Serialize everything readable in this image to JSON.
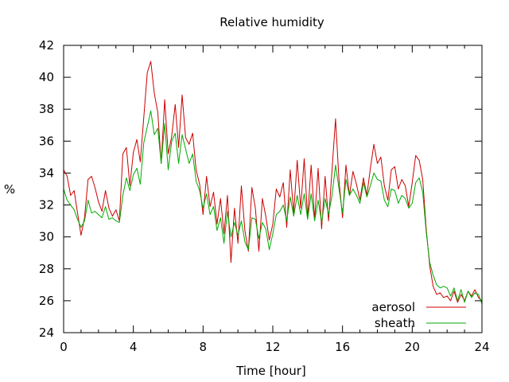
{
  "chart_data": {
    "type": "line",
    "title": "Relative humidity",
    "xlabel": "Time [hour]",
    "ylabel": "%",
    "xlim": [
      0,
      24
    ],
    "ylim": [
      24,
      42
    ],
    "xticks": [
      0,
      4,
      8,
      12,
      16,
      20,
      24
    ],
    "yticks": [
      24,
      26,
      28,
      30,
      32,
      34,
      36,
      38,
      40,
      42
    ],
    "x_minor_step": 1,
    "grid": false,
    "legend_position": "bottom-right",
    "series": [
      {
        "name": "aerosol",
        "color": "#cc0000",
        "points": [
          [
            0.0,
            34.2
          ],
          [
            0.2,
            33.8
          ],
          [
            0.4,
            32.6
          ],
          [
            0.6,
            32.9
          ],
          [
            0.8,
            31.5
          ],
          [
            1.0,
            30.1
          ],
          [
            1.2,
            31.2
          ],
          [
            1.4,
            33.6
          ],
          [
            1.6,
            33.8
          ],
          [
            1.8,
            33.1
          ],
          [
            2.0,
            32.2
          ],
          [
            2.2,
            31.6
          ],
          [
            2.4,
            32.9
          ],
          [
            2.6,
            31.8
          ],
          [
            2.8,
            31.3
          ],
          [
            3.0,
            31.7
          ],
          [
            3.2,
            31.0
          ],
          [
            3.4,
            35.2
          ],
          [
            3.6,
            35.6
          ],
          [
            3.8,
            33.2
          ],
          [
            4.0,
            35.3
          ],
          [
            4.2,
            36.1
          ],
          [
            4.4,
            34.7
          ],
          [
            4.6,
            37.5
          ],
          [
            4.8,
            40.3
          ],
          [
            5.0,
            41.0
          ],
          [
            5.2,
            39.0
          ],
          [
            5.4,
            37.8
          ],
          [
            5.6,
            34.6
          ],
          [
            5.8,
            38.6
          ],
          [
            6.0,
            35.2
          ],
          [
            6.2,
            36.3
          ],
          [
            6.4,
            38.3
          ],
          [
            6.6,
            35.6
          ],
          [
            6.8,
            38.9
          ],
          [
            7.0,
            36.2
          ],
          [
            7.2,
            35.8
          ],
          [
            7.4,
            36.5
          ],
          [
            7.6,
            34.2
          ],
          [
            7.8,
            33.3
          ],
          [
            8.0,
            31.4
          ],
          [
            8.2,
            33.8
          ],
          [
            8.4,
            31.9
          ],
          [
            8.6,
            32.8
          ],
          [
            8.8,
            30.8
          ],
          [
            9.0,
            32.4
          ],
          [
            9.2,
            30.2
          ],
          [
            9.4,
            32.6
          ],
          [
            9.6,
            28.4
          ],
          [
            9.8,
            31.8
          ],
          [
            10.0,
            29.6
          ],
          [
            10.2,
            33.2
          ],
          [
            10.4,
            30.4
          ],
          [
            10.6,
            29.1
          ],
          [
            10.8,
            33.1
          ],
          [
            11.0,
            31.8
          ],
          [
            11.2,
            29.1
          ],
          [
            11.4,
            32.4
          ],
          [
            11.6,
            31.3
          ],
          [
            11.8,
            29.8
          ],
          [
            12.0,
            30.8
          ],
          [
            12.2,
            33.0
          ],
          [
            12.4,
            32.5
          ],
          [
            12.6,
            33.4
          ],
          [
            12.8,
            30.6
          ],
          [
            13.0,
            34.2
          ],
          [
            13.2,
            31.5
          ],
          [
            13.4,
            34.8
          ],
          [
            13.6,
            31.8
          ],
          [
            13.8,
            34.9
          ],
          [
            14.0,
            31.2
          ],
          [
            14.2,
            34.5
          ],
          [
            14.4,
            31.1
          ],
          [
            14.6,
            34.3
          ],
          [
            14.8,
            30.5
          ],
          [
            15.0,
            33.8
          ],
          [
            15.2,
            31.0
          ],
          [
            15.4,
            34.2
          ],
          [
            15.6,
            37.4
          ],
          [
            15.8,
            33.5
          ],
          [
            16.0,
            31.2
          ],
          [
            16.2,
            34.5
          ],
          [
            16.4,
            32.6
          ],
          [
            16.6,
            34.1
          ],
          [
            16.8,
            33.3
          ],
          [
            17.0,
            32.3
          ],
          [
            17.2,
            33.7
          ],
          [
            17.4,
            32.6
          ],
          [
            17.6,
            34.3
          ],
          [
            17.8,
            35.8
          ],
          [
            18.0,
            34.6
          ],
          [
            18.2,
            35.0
          ],
          [
            18.4,
            33.2
          ],
          [
            18.6,
            32.3
          ],
          [
            18.8,
            34.2
          ],
          [
            19.0,
            34.4
          ],
          [
            19.2,
            33.0
          ],
          [
            19.4,
            33.6
          ],
          [
            19.6,
            33.2
          ],
          [
            19.8,
            31.9
          ],
          [
            20.0,
            33.4
          ],
          [
            20.2,
            35.1
          ],
          [
            20.4,
            34.8
          ],
          [
            20.6,
            33.6
          ],
          [
            20.8,
            30.5
          ],
          [
            21.0,
            28.2
          ],
          [
            21.2,
            26.9
          ],
          [
            21.4,
            26.4
          ],
          [
            21.6,
            26.5
          ],
          [
            21.8,
            26.2
          ],
          [
            22.0,
            26.3
          ],
          [
            22.2,
            26.0
          ],
          [
            22.4,
            26.6
          ],
          [
            22.6,
            25.9
          ],
          [
            22.8,
            26.4
          ],
          [
            23.0,
            26.0
          ],
          [
            23.2,
            26.6
          ],
          [
            23.4,
            26.3
          ],
          [
            23.6,
            26.7
          ],
          [
            23.8,
            26.2
          ],
          [
            24.0,
            26.0
          ]
        ]
      },
      {
        "name": "sheath",
        "color": "#00aa00",
        "points": [
          [
            0.0,
            33.0
          ],
          [
            0.2,
            32.3
          ],
          [
            0.4,
            32.0
          ],
          [
            0.6,
            31.7
          ],
          [
            0.8,
            31.1
          ],
          [
            1.0,
            30.6
          ],
          [
            1.2,
            31.0
          ],
          [
            1.4,
            32.3
          ],
          [
            1.6,
            31.5
          ],
          [
            1.8,
            31.6
          ],
          [
            2.0,
            31.4
          ],
          [
            2.2,
            31.2
          ],
          [
            2.4,
            31.9
          ],
          [
            2.6,
            31.1
          ],
          [
            2.8,
            31.2
          ],
          [
            3.0,
            31.0
          ],
          [
            3.2,
            30.9
          ],
          [
            3.4,
            32.6
          ],
          [
            3.6,
            33.7
          ],
          [
            3.8,
            32.9
          ],
          [
            4.0,
            33.9
          ],
          [
            4.2,
            34.3
          ],
          [
            4.4,
            33.3
          ],
          [
            4.6,
            35.9
          ],
          [
            4.8,
            36.9
          ],
          [
            5.0,
            37.9
          ],
          [
            5.2,
            36.4
          ],
          [
            5.4,
            36.8
          ],
          [
            5.6,
            34.6
          ],
          [
            5.8,
            37.1
          ],
          [
            6.0,
            34.2
          ],
          [
            6.2,
            36.0
          ],
          [
            6.4,
            36.5
          ],
          [
            6.6,
            34.6
          ],
          [
            6.8,
            36.4
          ],
          [
            7.0,
            35.5
          ],
          [
            7.2,
            34.6
          ],
          [
            7.4,
            35.2
          ],
          [
            7.6,
            33.5
          ],
          [
            7.8,
            32.9
          ],
          [
            8.0,
            31.8
          ],
          [
            8.2,
            32.7
          ],
          [
            8.4,
            31.4
          ],
          [
            8.6,
            31.9
          ],
          [
            8.8,
            30.4
          ],
          [
            9.0,
            31.2
          ],
          [
            9.2,
            29.6
          ],
          [
            9.4,
            31.6
          ],
          [
            9.6,
            30.0
          ],
          [
            9.8,
            30.9
          ],
          [
            10.0,
            30.1
          ],
          [
            10.2,
            31.0
          ],
          [
            10.4,
            29.7
          ],
          [
            10.6,
            29.2
          ],
          [
            10.8,
            31.2
          ],
          [
            11.0,
            31.1
          ],
          [
            11.2,
            29.9
          ],
          [
            11.4,
            30.9
          ],
          [
            11.6,
            30.5
          ],
          [
            11.8,
            29.2
          ],
          [
            12.0,
            30.2
          ],
          [
            12.2,
            31.4
          ],
          [
            12.4,
            31.6
          ],
          [
            12.6,
            32.0
          ],
          [
            12.8,
            31.0
          ],
          [
            13.0,
            32.5
          ],
          [
            13.2,
            31.3
          ],
          [
            13.4,
            32.6
          ],
          [
            13.6,
            31.4
          ],
          [
            13.8,
            32.7
          ],
          [
            14.0,
            31.1
          ],
          [
            14.2,
            32.7
          ],
          [
            14.4,
            31.0
          ],
          [
            14.6,
            32.3
          ],
          [
            14.8,
            30.9
          ],
          [
            15.0,
            32.4
          ],
          [
            15.2,
            31.4
          ],
          [
            15.4,
            32.6
          ],
          [
            15.6,
            34.5
          ],
          [
            15.8,
            33.0
          ],
          [
            16.0,
            31.5
          ],
          [
            16.2,
            33.6
          ],
          [
            16.4,
            32.6
          ],
          [
            16.6,
            33.0
          ],
          [
            16.8,
            32.6
          ],
          [
            17.0,
            32.1
          ],
          [
            17.2,
            33.4
          ],
          [
            17.4,
            32.5
          ],
          [
            17.6,
            33.2
          ],
          [
            17.8,
            34.0
          ],
          [
            18.0,
            33.6
          ],
          [
            18.2,
            33.5
          ],
          [
            18.4,
            32.3
          ],
          [
            18.6,
            31.9
          ],
          [
            18.8,
            33.0
          ],
          [
            19.0,
            32.9
          ],
          [
            19.2,
            32.1
          ],
          [
            19.4,
            32.6
          ],
          [
            19.6,
            32.4
          ],
          [
            19.8,
            31.8
          ],
          [
            20.0,
            32.1
          ],
          [
            20.2,
            33.4
          ],
          [
            20.4,
            33.7
          ],
          [
            20.6,
            32.8
          ],
          [
            20.8,
            30.3
          ],
          [
            21.0,
            28.4
          ],
          [
            21.2,
            27.6
          ],
          [
            21.4,
            27.0
          ],
          [
            21.6,
            26.8
          ],
          [
            21.8,
            26.9
          ],
          [
            22.0,
            26.8
          ],
          [
            22.2,
            26.3
          ],
          [
            22.4,
            26.8
          ],
          [
            22.6,
            26.0
          ],
          [
            22.8,
            26.7
          ],
          [
            23.0,
            25.9
          ],
          [
            23.2,
            26.6
          ],
          [
            23.4,
            26.2
          ],
          [
            23.6,
            26.5
          ],
          [
            23.8,
            26.4
          ],
          [
            24.0,
            25.8
          ]
        ]
      }
    ]
  }
}
